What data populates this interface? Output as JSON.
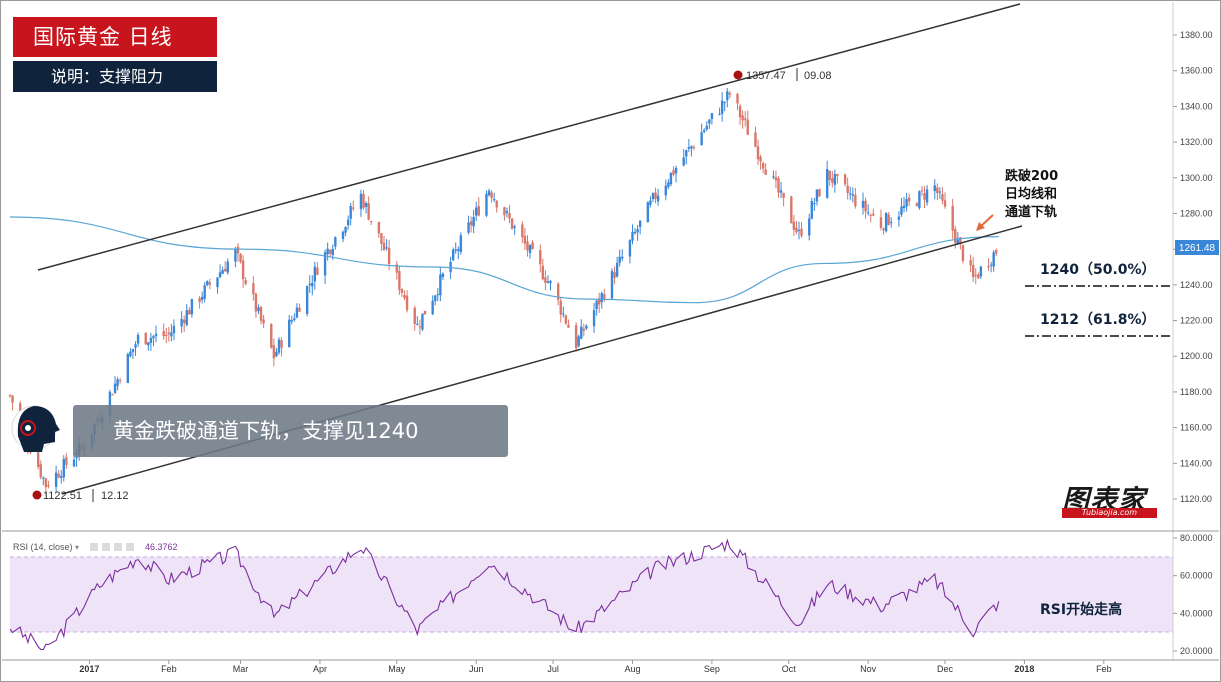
{
  "header": {
    "title": "国际黄金  日线",
    "subtitle": "说明：支撑阻力"
  },
  "banner": {
    "text": "黄金跌破通道下轨，支撑见1240"
  },
  "annotations": {
    "high_price": "1357.47",
    "high_date": "09.08",
    "low_price": "1122.51",
    "low_date": "12.12",
    "break_note_line1": "跌破200",
    "break_note_line2": "日均线和",
    "break_note_line3": "通道下轨",
    "support_1240": "1240（50.0%）",
    "support_1212": "1212（61.8%）",
    "last_price": "1261.48",
    "rsi_note": "RSI开始走高"
  },
  "rsi_panel": {
    "label": "RSI (14, close)",
    "value": "46.3762"
  },
  "logo": {
    "name": "图表家",
    "sub": "Tubiaojia.com"
  },
  "colors": {
    "up": "#3a86d8",
    "down": "#d9776a",
    "ma200": "#5ba6d6",
    "channel": "#333333",
    "rsi_line": "#7b2f9e",
    "rsi_band": "#eadcf5",
    "title_bg": "#c8141c",
    "subtitle_bg": "#10233c"
  },
  "chart_data": [
    {
      "type": "candlestick",
      "title": "国际黄金  日线",
      "price_axis_ticks": [
        "1380.00",
        "1360.00",
        "1340.00",
        "1320.00",
        "1300.00",
        "1280.00",
        "1260.00",
        "1240.00",
        "1220.00",
        "1200.00",
        "1180.00",
        "1160.00",
        "1140.00",
        "1120.00"
      ],
      "time_axis_ticks": [
        "2017",
        "Feb",
        "Mar",
        "Apr",
        "May",
        "Jun",
        "Jul",
        "Aug",
        "Sep",
        "Oct",
        "Nov",
        "Dec",
        "2018",
        "Feb"
      ],
      "ylim": [
        1110,
        1390
      ],
      "swing_high": {
        "price": 1357.47,
        "date": "09.08"
      },
      "swing_low": {
        "price": 1122.51,
        "date": "12.12"
      },
      "support_levels": [
        1240,
        1212
      ],
      "last_price": 1261.48,
      "trend_path": [
        {
          "date": "2016-12-01",
          "close": 1178
        },
        {
          "date": "2016-12-15",
          "close": 1128
        },
        {
          "date": "2016-12-30",
          "close": 1150
        },
        {
          "date": "2017-01-20",
          "close": 1210
        },
        {
          "date": "2017-02-01",
          "close": 1212
        },
        {
          "date": "2017-02-27",
          "close": 1258
        },
        {
          "date": "2017-03-14",
          "close": 1200
        },
        {
          "date": "2017-03-31",
          "close": 1250
        },
        {
          "date": "2017-04-17",
          "close": 1290
        },
        {
          "date": "2017-05-09",
          "close": 1217
        },
        {
          "date": "2017-06-06",
          "close": 1294
        },
        {
          "date": "2017-06-30",
          "close": 1240
        },
        {
          "date": "2017-07-10",
          "close": 1207
        },
        {
          "date": "2017-08-10",
          "close": 1290
        },
        {
          "date": "2017-09-08",
          "close": 1347
        },
        {
          "date": "2017-10-05",
          "close": 1268
        },
        {
          "date": "2017-10-16",
          "close": 1302
        },
        {
          "date": "2017-11-06",
          "close": 1274
        },
        {
          "date": "2017-11-27",
          "close": 1295
        },
        {
          "date": "2017-12-12",
          "close": 1243
        },
        {
          "date": "2017-12-22",
          "close": 1261
        }
      ],
      "ma200": [
        {
          "date": "2016-12-01",
          "value": 1278
        },
        {
          "date": "2017-03-01",
          "value": 1260
        },
        {
          "date": "2017-05-15",
          "value": 1250
        },
        {
          "date": "2017-07-15",
          "value": 1232
        },
        {
          "date": "2017-08-25",
          "value": 1230
        },
        {
          "date": "2017-10-15",
          "value": 1252
        },
        {
          "date": "2017-12-22",
          "value": 1267
        }
      ]
    },
    {
      "type": "line",
      "title": "RSI (14, close)",
      "ylim": [
        15,
        82
      ],
      "y_ticks": [
        "80.0000",
        "60.0000",
        "40.0000",
        "20.0000"
      ],
      "band": [
        30,
        70
      ],
      "series": [
        {
          "name": "RSI (14, close)",
          "points": [
            {
              "date": "2016-12-01",
              "value": 33
            },
            {
              "date": "2016-12-15",
              "value": 20
            },
            {
              "date": "2017-01-05",
              "value": 55
            },
            {
              "date": "2017-01-20",
              "value": 70
            },
            {
              "date": "2017-02-01",
              "value": 58
            },
            {
              "date": "2017-02-27",
              "value": 72
            },
            {
              "date": "2017-03-14",
              "value": 38
            },
            {
              "date": "2017-04-17",
              "value": 76
            },
            {
              "date": "2017-05-09",
              "value": 31
            },
            {
              "date": "2017-06-06",
              "value": 68
            },
            {
              "date": "2017-07-10",
              "value": 31
            },
            {
              "date": "2017-08-10",
              "value": 64
            },
            {
              "date": "2017-09-08",
              "value": 78
            },
            {
              "date": "2017-10-05",
              "value": 35
            },
            {
              "date": "2017-10-16",
              "value": 56
            },
            {
              "date": "2017-11-06",
              "value": 44
            },
            {
              "date": "2017-11-27",
              "value": 58
            },
            {
              "date": "2017-12-12",
              "value": 31
            },
            {
              "date": "2017-12-22",
              "value": 46.3762
            }
          ]
        }
      ]
    }
  ]
}
